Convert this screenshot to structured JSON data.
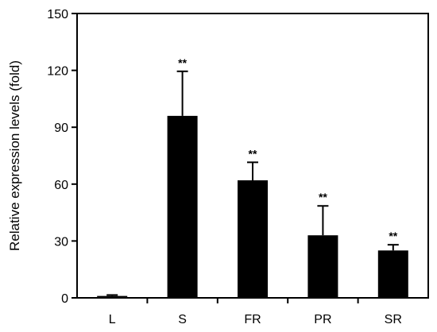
{
  "chart_data": {
    "type": "bar",
    "title": "",
    "xlabel": "",
    "ylabel": "Relative expression levels (fold)",
    "categories": [
      "L",
      "S",
      "FR",
      "PR",
      "SR"
    ],
    "values": [
      1,
      96,
      62,
      33,
      25
    ],
    "error_plus": [
      0.5,
      23.5,
      9.5,
      15.5,
      3
    ],
    "annotations": [
      "",
      "**",
      "**",
      "**",
      "**"
    ],
    "ylim": [
      0,
      150
    ],
    "yticks": [
      0,
      30,
      60,
      90,
      120,
      150
    ],
    "grid": false,
    "legend": "none",
    "bar_color": "#000000"
  }
}
